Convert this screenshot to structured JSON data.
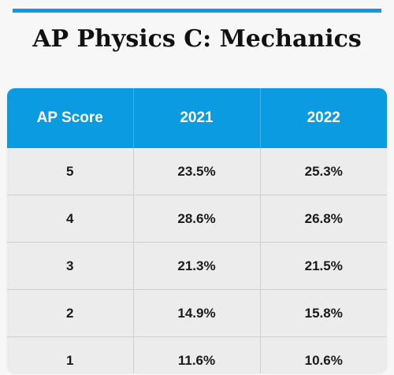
{
  "page": {
    "title_part1": "AP",
    "title_part2": "Physics C: Mechanics",
    "accent_color": "#0b9be0"
  },
  "table": {
    "headers": [
      "AP Score",
      "2021",
      "2022"
    ],
    "rows": [
      [
        "5",
        "23.5%",
        "25.3%"
      ],
      [
        "4",
        "28.6%",
        "26.8%"
      ],
      [
        "3",
        "21.3%",
        "21.5%"
      ],
      [
        "2",
        "14.9%",
        "15.8%"
      ],
      [
        "1",
        "11.6%",
        "10.6%"
      ]
    ]
  }
}
